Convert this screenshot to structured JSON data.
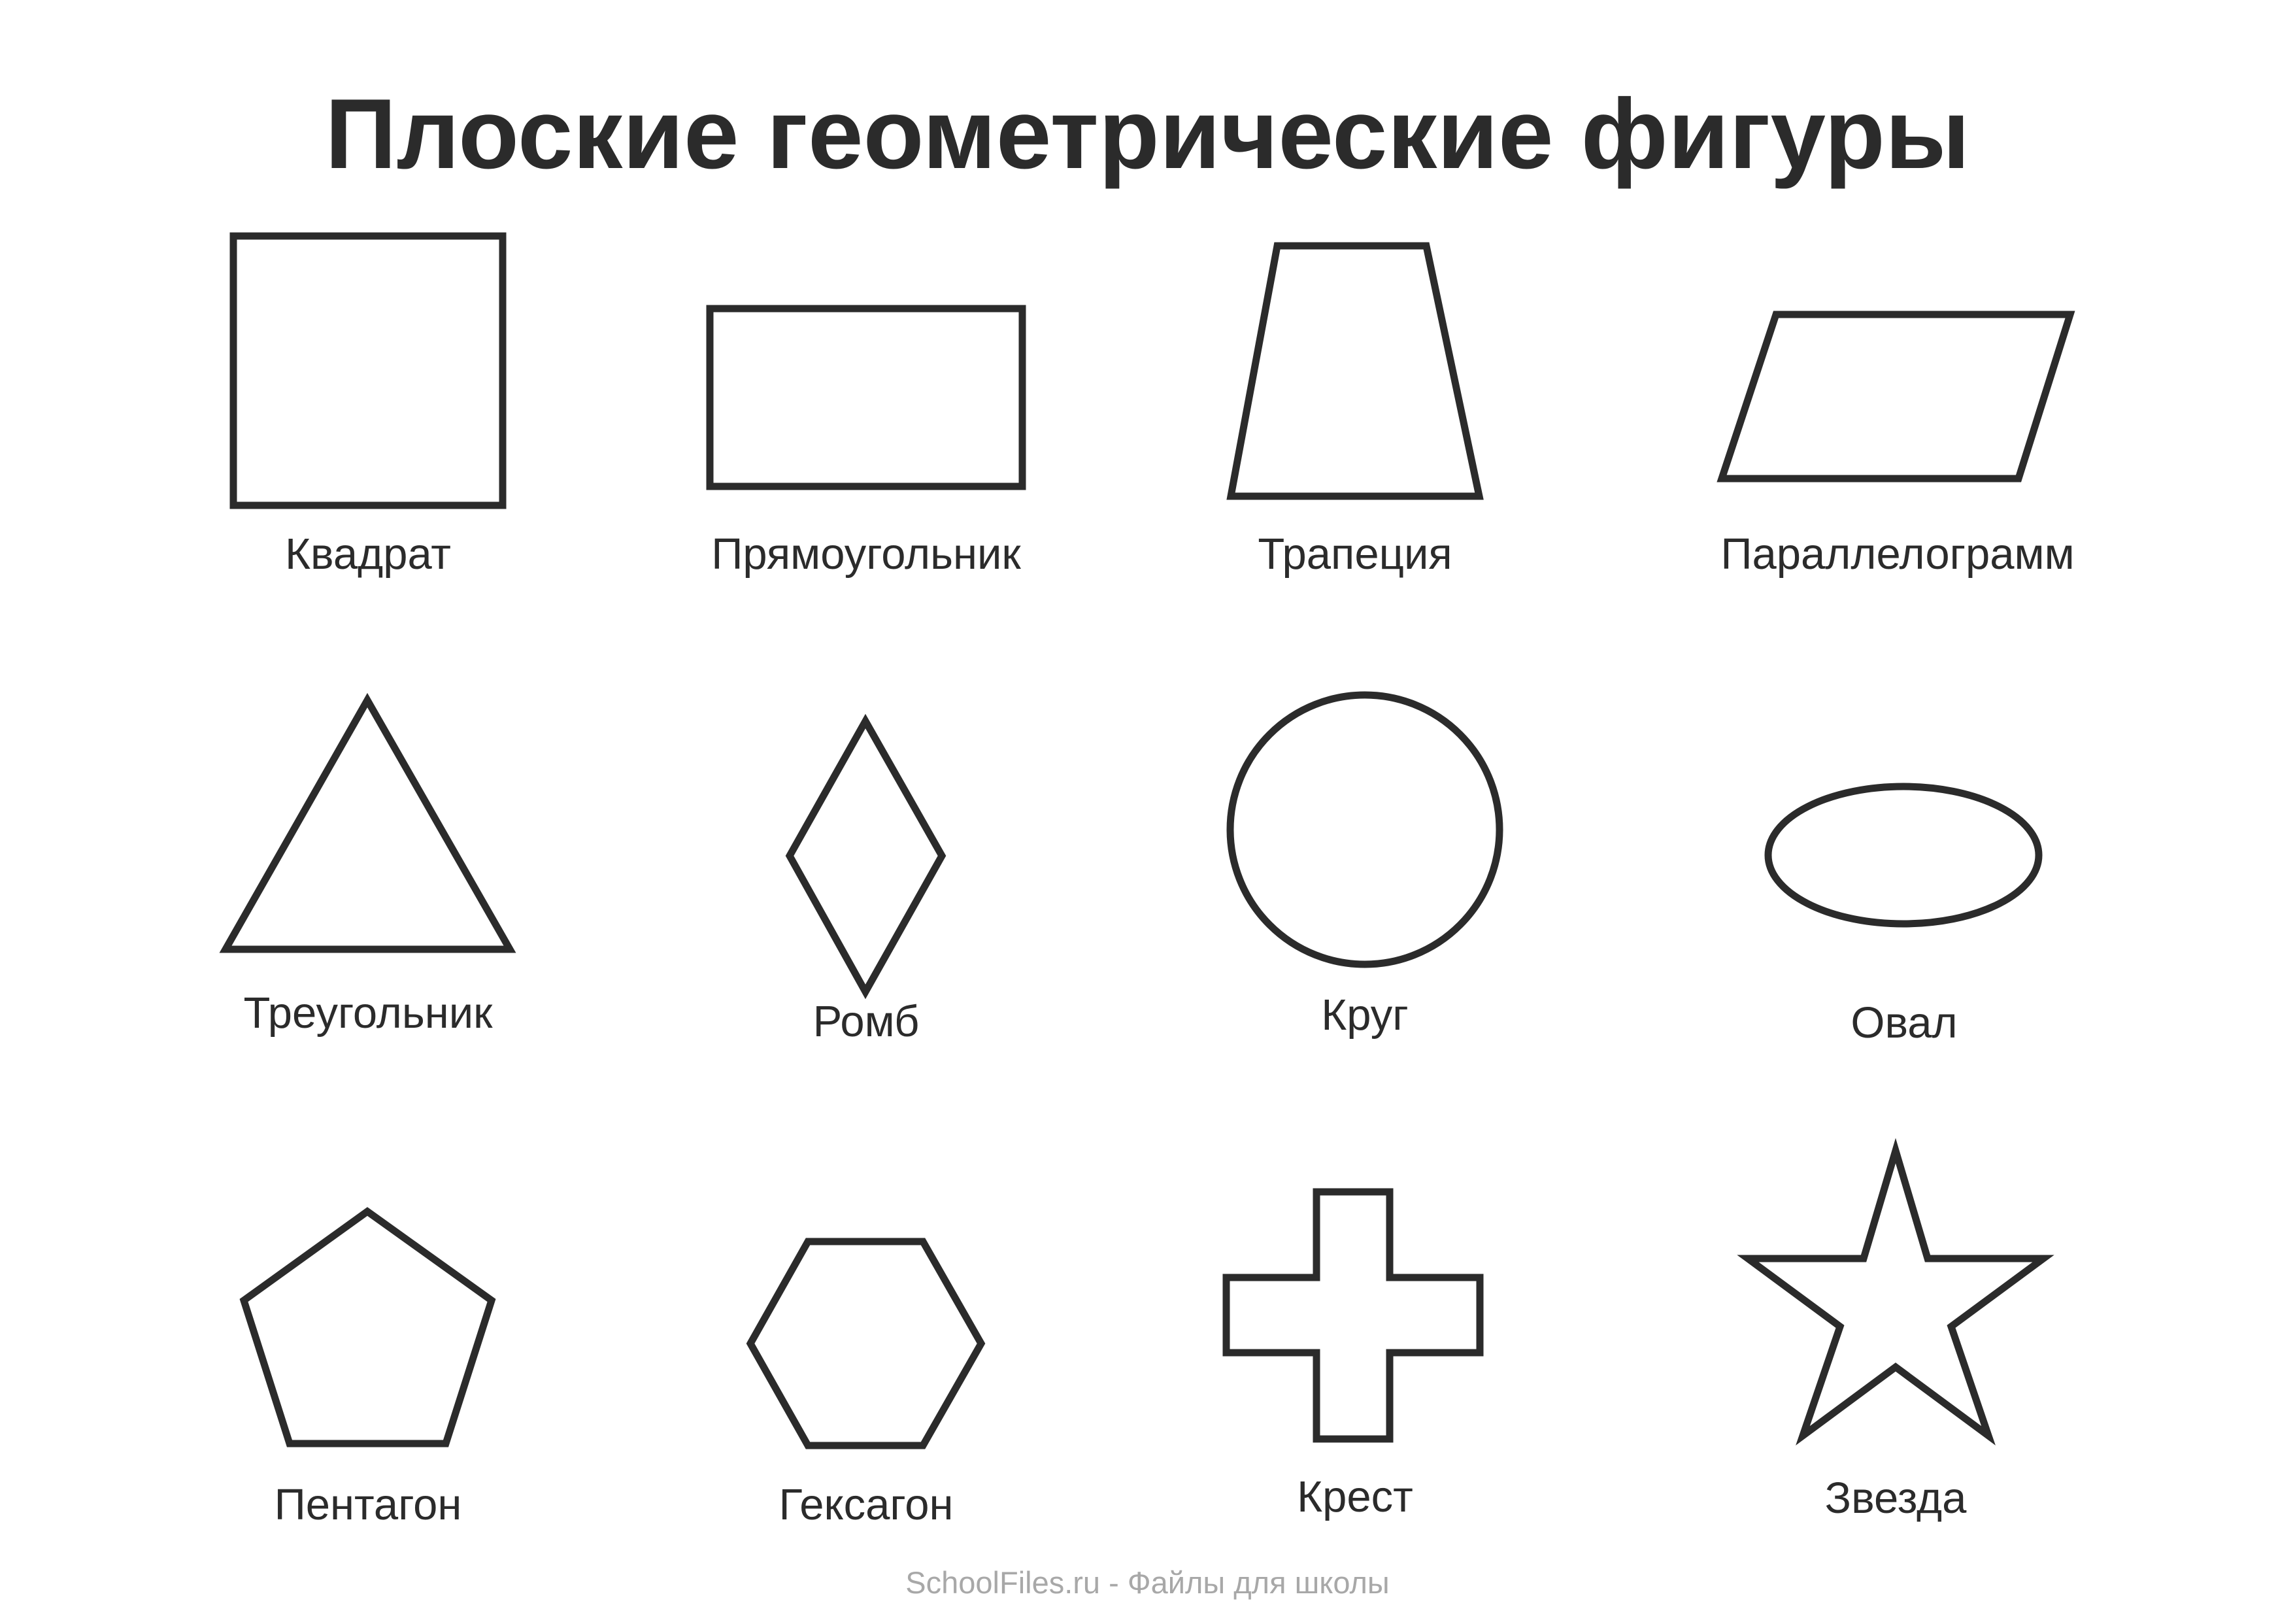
{
  "title": "Плоские геометрические фигуры",
  "shapes": [
    {
      "icon": "square-icon",
      "label": "Квадрат"
    },
    {
      "icon": "rectangle-icon",
      "label": "Прямоугольник"
    },
    {
      "icon": "trapezoid-icon",
      "label": "Трапеция"
    },
    {
      "icon": "parallelogram-icon",
      "label": "Параллелограмм"
    },
    {
      "icon": "triangle-icon",
      "label": "Треугольник"
    },
    {
      "icon": "rhombus-icon",
      "label": "Ромб"
    },
    {
      "icon": "circle-icon",
      "label": "Круг"
    },
    {
      "icon": "oval-icon",
      "label": "Овал"
    },
    {
      "icon": "pentagon-icon",
      "label": "Пентагон"
    },
    {
      "icon": "hexagon-icon",
      "label": "Гексагон"
    },
    {
      "icon": "cross-icon",
      "label": "Крест"
    },
    {
      "icon": "star-icon",
      "label": "Звезда"
    }
  ],
  "footer": "SchoolFiles.ru - Файлы для школы",
  "colors": {
    "stroke": "#2b2b2b",
    "text": "#2b2b2b",
    "footer": "#a8a8a8",
    "background": "#ffffff"
  }
}
